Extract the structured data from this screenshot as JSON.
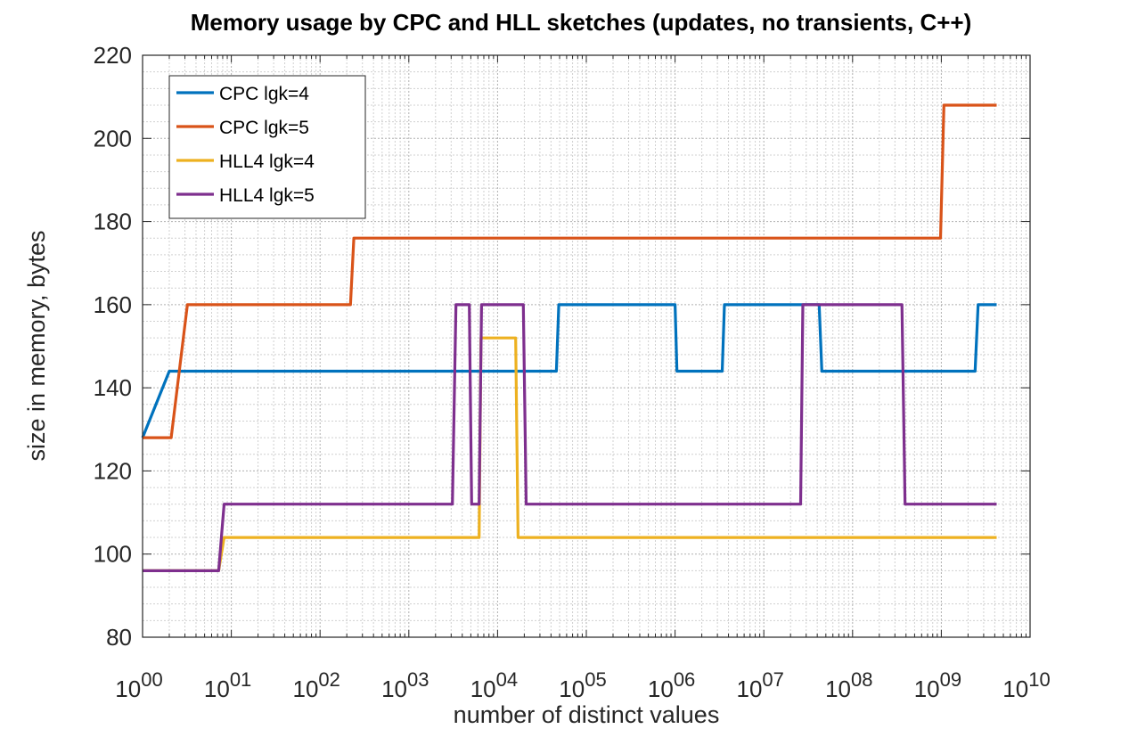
{
  "chart_data": {
    "type": "line",
    "title": "Memory usage by CPC and HLL sketches (updates, no transients, C++)",
    "xlabel": "number of distinct values",
    "ylabel": "size in memory, bytes",
    "xscale": "log",
    "xlim": [
      1,
      10000000000.0
    ],
    "ylim": [
      80,
      220
    ],
    "xticks": [
      1,
      10,
      100,
      1000,
      10000,
      100000,
      1000000,
      10000000,
      100000000,
      1000000000,
      10000000000
    ],
    "xtick_labels": [
      {
        "base": "10",
        "exp": "00"
      },
      {
        "base": "10",
        "exp": "01"
      },
      {
        "base": "10",
        "exp": "02"
      },
      {
        "base": "10",
        "exp": "03"
      },
      {
        "base": "10",
        "exp": "04"
      },
      {
        "base": "10",
        "exp": "05"
      },
      {
        "base": "10",
        "exp": "06"
      },
      {
        "base": "10",
        "exp": "07"
      },
      {
        "base": "10",
        "exp": "08"
      },
      {
        "base": "10",
        "exp": "09"
      },
      {
        "base": "10",
        "exp": "10"
      }
    ],
    "yticks": [
      80,
      100,
      120,
      140,
      160,
      180,
      200,
      220
    ],
    "ytick_labels": [
      "80",
      "100",
      "120",
      "140",
      "160",
      "180",
      "200",
      "220"
    ],
    "grid": true,
    "minor_grid": true,
    "legend_placement": "top-left",
    "series": [
      {
        "name": "CPC lgk=4",
        "color": "#0072BD",
        "points": [
          [
            1,
            128
          ],
          [
            2,
            144
          ],
          [
            46000,
            144
          ],
          [
            49000,
            160
          ],
          [
            1000000.0,
            160
          ],
          [
            1050000.0,
            144
          ],
          [
            3400000.0,
            144
          ],
          [
            3600000.0,
            160
          ],
          [
            42000000.0,
            160
          ],
          [
            45000000.0,
            144
          ],
          [
            2400000000.0,
            144
          ],
          [
            2600000000.0,
            160
          ],
          [
            4200000000.0,
            160
          ]
        ]
      },
      {
        "name": "CPC lgk=5",
        "color": "#D95319",
        "points": [
          [
            1,
            128
          ],
          [
            2.1,
            128
          ],
          [
            3.2,
            160
          ],
          [
            220,
            160
          ],
          [
            240,
            176
          ],
          [
            980000000.0,
            176
          ],
          [
            1070000000.0,
            208
          ],
          [
            4200000000.0,
            208
          ]
        ]
      },
      {
        "name": "HLL4 lgk=4",
        "color": "#EDB120",
        "points": [
          [
            1,
            96
          ],
          [
            7.2,
            96
          ],
          [
            8.3,
            104
          ],
          [
            6200,
            104
          ],
          [
            6500,
            152
          ],
          [
            16000,
            152
          ],
          [
            17000,
            104
          ],
          [
            4200000000.0,
            104
          ]
        ]
      },
      {
        "name": "HLL4 lgk=5",
        "color": "#7E2F8E",
        "points": [
          [
            1,
            96
          ],
          [
            7.2,
            96
          ],
          [
            8.3,
            112
          ],
          [
            3100,
            112
          ],
          [
            3400,
            160
          ],
          [
            4800,
            160
          ],
          [
            5100,
            112
          ],
          [
            6200,
            112
          ],
          [
            6600,
            160
          ],
          [
            19500,
            160
          ],
          [
            21000,
            112
          ],
          [
            26000000.0,
            112
          ],
          [
            27500000.0,
            160
          ],
          [
            360000000.0,
            160
          ],
          [
            390000000.0,
            112
          ],
          [
            4200000000.0,
            112
          ]
        ]
      }
    ]
  }
}
